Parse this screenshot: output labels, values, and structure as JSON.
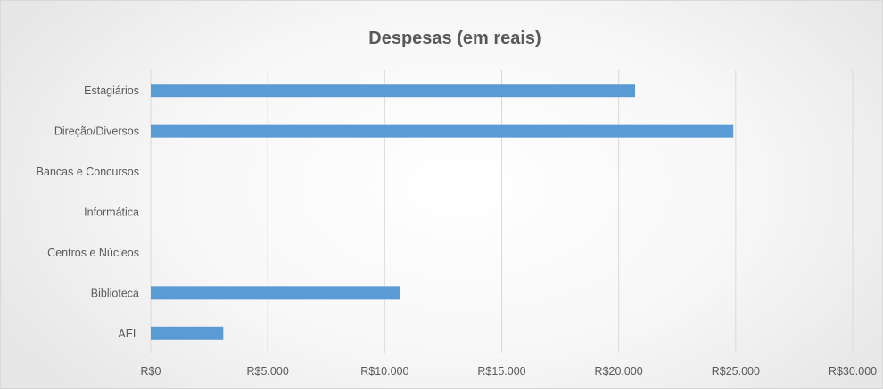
{
  "chart_data": {
    "type": "bar",
    "orientation": "horizontal",
    "title": "Despesas (em reais)",
    "categories": [
      "Estagiários",
      "Direção/Diversos",
      "Bancas e Concursos",
      "Informática",
      "Centros e Núcleos",
      "Biblioteca",
      "AEL"
    ],
    "values": [
      20700,
      24900,
      0,
      0,
      0,
      10650,
      3100
    ],
    "xlim": [
      0,
      30000
    ],
    "ticks": [
      0,
      5000,
      10000,
      15000,
      20000,
      25000,
      30000
    ],
    "tick_labels": [
      "R$0",
      "R$5.000",
      "R$10.000",
      "R$15.000",
      "R$20.000",
      "R$25.000",
      "R$30.000"
    ],
    "grid": true,
    "legend": "none",
    "bar_color": "#5b9bd5"
  }
}
